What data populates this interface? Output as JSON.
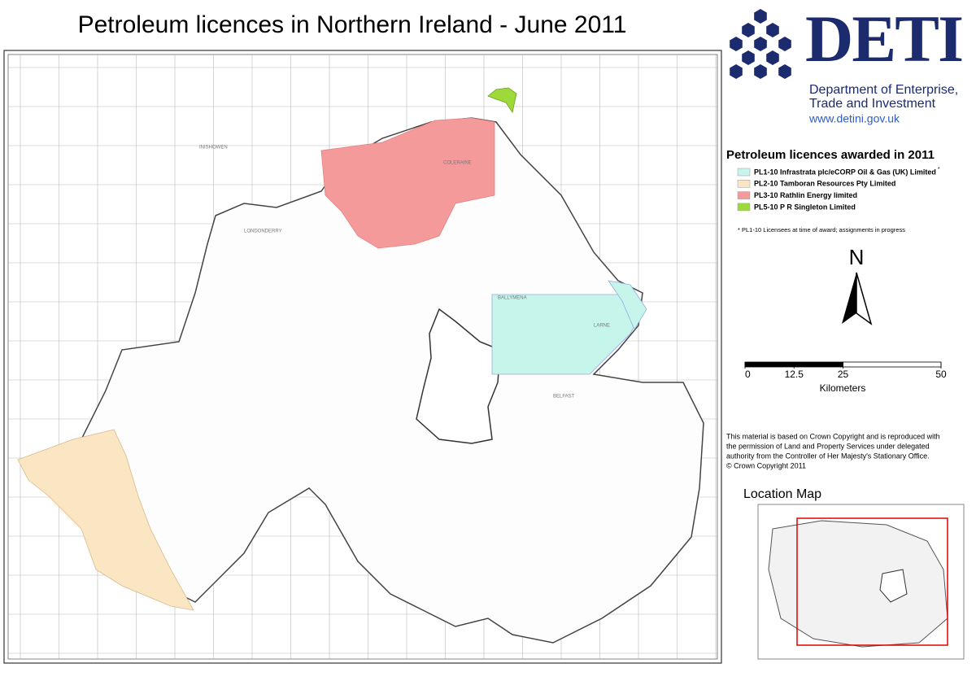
{
  "header": {
    "title": "Petroleum licences in Northern Ireland - June 2011"
  },
  "logo": {
    "name": "DETI",
    "lines": [
      "Department of Enterprise,",
      "Trade and Investment"
    ],
    "url": "www.detini.gov.uk"
  },
  "legend": {
    "title": "Petroleum licences awarded in 2011",
    "items": [
      {
        "label": "PL1-10 Infrastrata plc/eCORP Oil & Gas (UK) Limited",
        "marker": "*",
        "color": "#c6f5ec"
      },
      {
        "label": "PL2-10 Tamboran Resources Pty Limited",
        "color": "#fae6c3"
      },
      {
        "label": "PL3-10 Rathlin Energy limited",
        "color": "#f59a9a"
      },
      {
        "label": "PL5-10 P R Singleton Limited",
        "color": "#9ed93a"
      }
    ],
    "note": "* PL1-10 Licensees at time of award; assignments in progress"
  },
  "north_arrow": {
    "label": "N"
  },
  "scale_bar": {
    "ticks": [
      0,
      12.5,
      25,
      50
    ],
    "unit": "Kilometers"
  },
  "copyright": {
    "lines": [
      "This material is based on Crown Copyright and is reproduced with",
      "the permission of Land and Property Services under delegated",
      "authority from the Controller of Her Majesty's Stationary Office.",
      "© Crown Copyright 2011"
    ]
  },
  "location_map": {
    "title": "Location Map"
  },
  "map": {
    "places": [
      "INISHOWEN",
      "LONDONDERRY",
      "BALLYMENA",
      "BELFAST",
      "LARNE",
      "COLERAINE"
    ]
  }
}
